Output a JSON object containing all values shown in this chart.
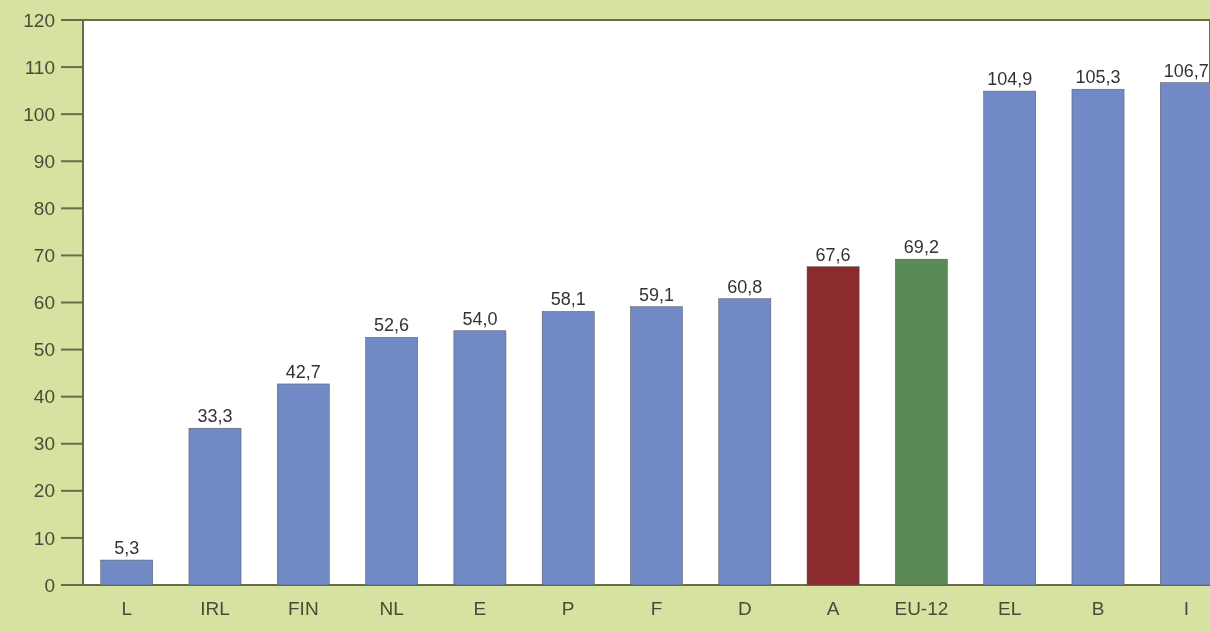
{
  "chart_data": {
    "type": "bar",
    "categories": [
      "L",
      "IRL",
      "FIN",
      "NL",
      "E",
      "P",
      "F",
      "D",
      "A",
      "EU-12",
      "EL",
      "B",
      "I"
    ],
    "values": [
      5.3,
      33.3,
      42.7,
      52.6,
      54.0,
      58.1,
      59.1,
      60.8,
      67.6,
      69.2,
      104.9,
      105.3,
      106.7
    ],
    "colors": [
      "#7189c4",
      "#7189c4",
      "#7189c4",
      "#7189c4",
      "#7189c4",
      "#7189c4",
      "#7189c4",
      "#7189c4",
      "#8c2b2e",
      "#5a8a55",
      "#7189c4",
      "#7189c4",
      "#7189c4"
    ],
    "value_labels": [
      "5,3",
      "33,3",
      "42,7",
      "52,6",
      "54,0",
      "58,1",
      "59,1",
      "60,8",
      "67,6",
      "69,2",
      "104,9",
      "105,3",
      "106,7"
    ],
    "ylim": [
      0,
      120
    ],
    "yticks": [
      0,
      10,
      20,
      30,
      40,
      50,
      60,
      70,
      80,
      90,
      100,
      110,
      120
    ],
    "grid": false
  }
}
